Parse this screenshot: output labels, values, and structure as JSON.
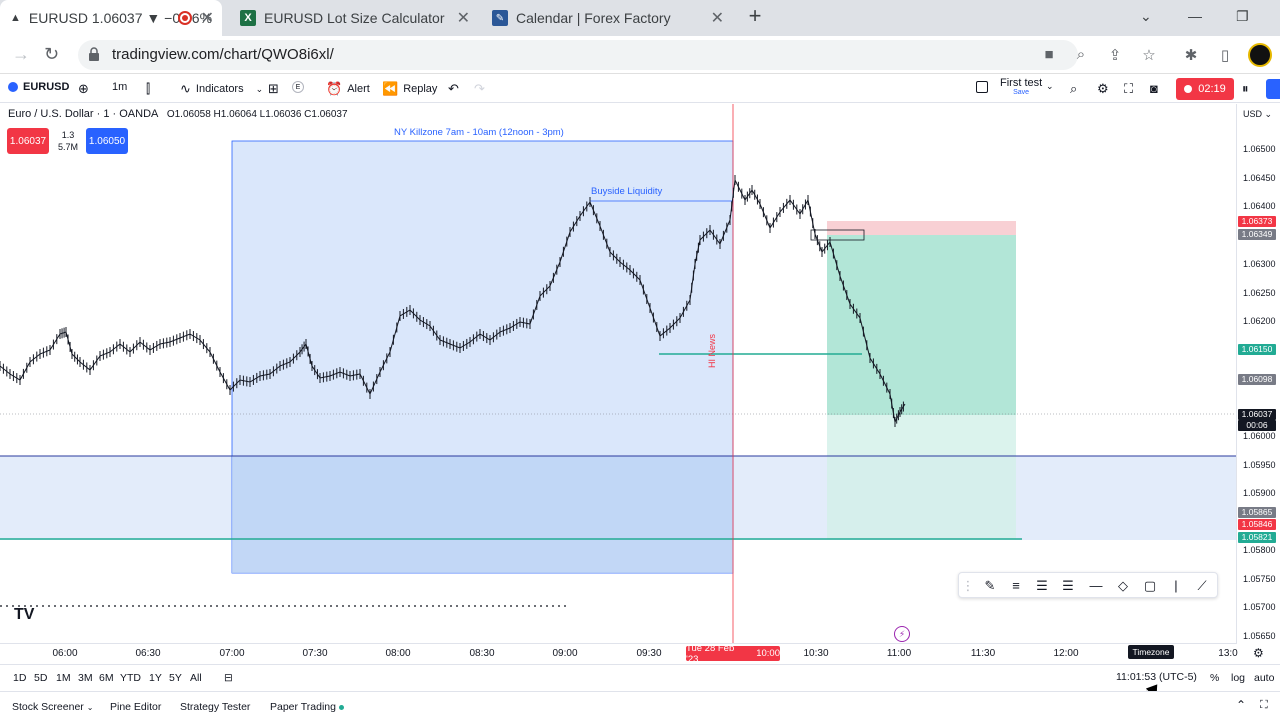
{
  "browser": {
    "tabs": [
      {
        "title": "EURUSD 1.06037 ▼ −0.06%",
        "active": true
      },
      {
        "title": "EURUSD Lot Size Calculator",
        "active": false
      },
      {
        "title": "Calendar | Forex Factory",
        "active": false
      }
    ],
    "url": "tradingview.com/chart/QWO8i6xl/"
  },
  "toolbar": {
    "symbol": "EURUSD",
    "interval": "1m",
    "indicators": "Indicators",
    "alert": "Alert",
    "replay": "Replay",
    "layout_name": "First test",
    "layout_sub": "Save",
    "record_time": "02:19",
    "e_label": "E"
  },
  "legend": {
    "title": "Euro / U.S. Dollar · 1 · OANDA",
    "ohlc": "O1.06058 H1.06064 L1.06036 C1.06037",
    "sell_price": "1.06037",
    "buy_price": "1.06050",
    "spread": "1.3",
    "volume": "5.7M"
  },
  "annotations": {
    "killzone": "NY Killzone 7am - 10am (12noon - 3pm)",
    "buyside": "Buyside Liquidity",
    "news": "HI News"
  },
  "price_axis": {
    "currency": "USD",
    "labels": [
      "1.06500",
      "1.06450",
      "1.06400",
      "1.06300",
      "1.06250",
      "1.06200",
      "1.06000",
      "1.05950",
      "1.05900",
      "1.05800",
      "1.05750",
      "1.05700",
      "1.05650"
    ],
    "tags": [
      {
        "text": "1.06373",
        "color": "#f23645"
      },
      {
        "text": "1.06349",
        "color": "#787b86"
      },
      {
        "text": "1.06150",
        "color": "#22ab94"
      },
      {
        "text": "1.06098",
        "color": "#787b86"
      },
      {
        "text": "1.06037",
        "color": "#131722"
      },
      {
        "text": "00:06",
        "color": "#131722"
      },
      {
        "text": "1.05865",
        "color": "#787b86"
      },
      {
        "text": "1.05846",
        "color": "#f23645"
      },
      {
        "text": "1.05821",
        "color": "#22ab94"
      }
    ]
  },
  "time_axis": {
    "labels": [
      "06:00",
      "06:30",
      "07:00",
      "07:30",
      "08:00",
      "08:30",
      "09:00",
      "09:30",
      "10:30",
      "11:00",
      "11:30",
      "12:00",
      "13:0"
    ],
    "cursor_date": "Tue 28 Feb '23",
    "cursor_time": "10:00",
    "timezone_tooltip": "Timezone"
  },
  "range": {
    "buttons": [
      "1D",
      "5D",
      "1M",
      "3M",
      "6M",
      "YTD",
      "1Y",
      "5Y",
      "All"
    ],
    "clock": "11:01:53 (UTC-5)",
    "percent": "%",
    "log": "log",
    "auto": "auto"
  },
  "panels": {
    "items": [
      "Stock Screener",
      "Pine Editor",
      "Strategy Tester",
      "Paper Trading"
    ]
  },
  "colors": {
    "killzone_fill": "#d6e4fb",
    "killzone_border": "#2962ff",
    "short_tp": "#b2e6d7",
    "short_sl": "#f8d0d4",
    "red": "#f23645",
    "green": "#22ab94"
  }
}
